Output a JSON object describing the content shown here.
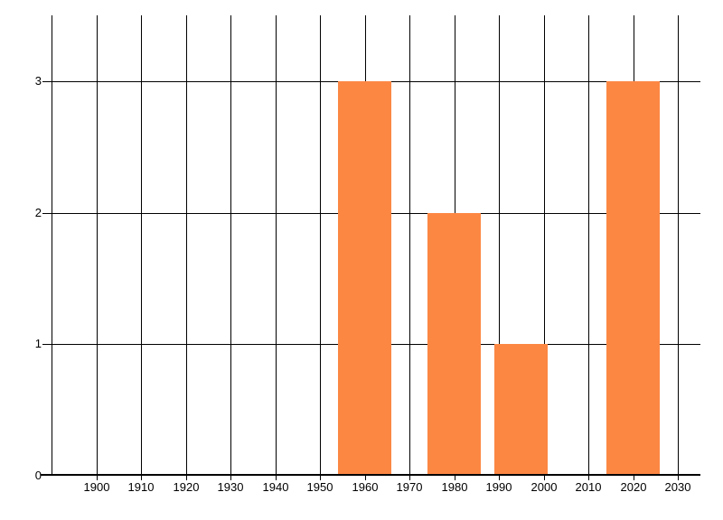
{
  "chart_data": {
    "type": "bar",
    "title": "",
    "xlabel": "",
    "ylabel": "",
    "x": [
      1960,
      1980,
      1995,
      2020
    ],
    "values": [
      3,
      2,
      1,
      3
    ],
    "bar_width_years": 12,
    "x_gridline_years": [
      1890,
      1900,
      1910,
      1920,
      1930,
      1940,
      1950,
      1960,
      1970,
      1980,
      1990,
      2000,
      2010,
      2020,
      2030
    ],
    "x_tick_years": [
      1900,
      1910,
      1920,
      1930,
      1940,
      1950,
      1960,
      1970,
      1980,
      1990,
      2000,
      2010,
      2020,
      2030
    ],
    "x_tick_labels": [
      "1900",
      "1910",
      "1920",
      "1930",
      "1940",
      "1950",
      "1960",
      "1970",
      "1980",
      "1990",
      "2000",
      "2010",
      "2020",
      "2030"
    ],
    "y_tick_values": [
      0,
      1,
      2,
      3
    ],
    "y_tick_labels": [
      "0",
      "1",
      "2",
      "3"
    ],
    "xlim": [
      1890,
      2035
    ],
    "ylim": [
      0,
      3.5
    ],
    "grid": true,
    "legend_position": "none",
    "bar_color": "#FC8743",
    "grid_color": "#000000",
    "axis_color": "#000000",
    "text_color": "#000000",
    "background_color": "#FFFFFF"
  }
}
